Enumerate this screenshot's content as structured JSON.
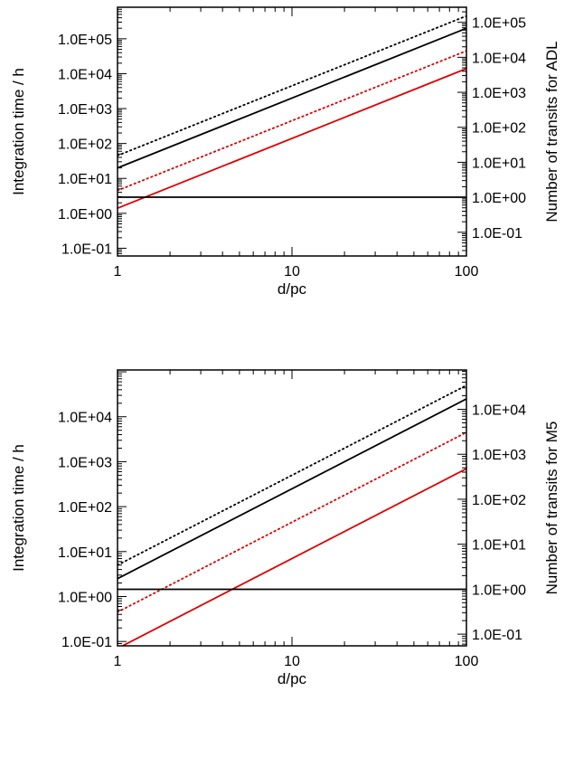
{
  "chart_data": [
    {
      "type": "line",
      "xscale": "log",
      "yscale": "log",
      "xlabel": "d/pc",
      "ylabel": "Integration time / h",
      "ylabel_right": "Number of transits for ADL",
      "xlim": [
        1,
        100
      ],
      "ylim": [
        0.06,
        800000
      ],
      "ylim_right": [
        0.021,
        270000
      ],
      "x_ticks": [
        {
          "value": 1,
          "label": "1"
        },
        {
          "value": 10,
          "label": "10"
        },
        {
          "value": 100,
          "label": "100"
        }
      ],
      "y_ticks": [
        {
          "value": 0.1,
          "label": "1.0E-01"
        },
        {
          "value": 1,
          "label": "1.0E+00"
        },
        {
          "value": 10,
          "label": "1.0E+01"
        },
        {
          "value": 100,
          "label": "1.0E+02"
        },
        {
          "value": 1000,
          "label": "1.0E+03"
        },
        {
          "value": 10000,
          "label": "1.0E+04"
        },
        {
          "value": 100000,
          "label": "1.0E+05"
        }
      ],
      "y_ticks_right": [
        {
          "value": 0.1,
          "label": "1.0E-01"
        },
        {
          "value": 1,
          "label": "1.0E+00"
        },
        {
          "value": 10,
          "label": "1.0E+01"
        },
        {
          "value": 100,
          "label": "1.0E+02"
        },
        {
          "value": 1000,
          "label": "1.0E+03"
        },
        {
          "value": 10000,
          "label": "1.0E+04"
        },
        {
          "value": 100000,
          "label": "1.0E+05"
        }
      ],
      "series": [
        {
          "color": "#000000",
          "dash": "dotted",
          "x": [
            1,
            100
          ],
          "y": [
            45,
            450000
          ]
        },
        {
          "color": "#000000",
          "dash": "solid",
          "x": [
            1,
            100
          ],
          "y": [
            20,
            200000
          ]
        },
        {
          "color": "#dd0000",
          "dash": "dotted",
          "x": [
            1,
            100
          ],
          "y": [
            4.5,
            45000
          ]
        },
        {
          "color": "#dd0000",
          "dash": "solid",
          "x": [
            1,
            100
          ],
          "y": [
            1.4,
            14000
          ]
        },
        {
          "color": "#000000",
          "dash": "solid",
          "x": [
            1,
            100
          ],
          "y": [
            2.9,
            2.9
          ]
        }
      ]
    },
    {
      "type": "line",
      "xscale": "log",
      "yscale": "log",
      "xlabel": "d/pc",
      "ylabel": "Integration time / h",
      "ylabel_right": "Number of transits for M5",
      "xlim": [
        1,
        100
      ],
      "ylim": [
        0.08,
        110000
      ],
      "ylim_right": [
        0.055,
        75000
      ],
      "x_ticks": [
        {
          "value": 1,
          "label": "1"
        },
        {
          "value": 10,
          "label": "10"
        },
        {
          "value": 100,
          "label": "100"
        }
      ],
      "y_ticks": [
        {
          "value": 0.1,
          "label": "1.0E-01"
        },
        {
          "value": 1,
          "label": "1.0E+00"
        },
        {
          "value": 10,
          "label": "1.0E+01"
        },
        {
          "value": 100,
          "label": "1.0E+02"
        },
        {
          "value": 1000,
          "label": "1.0E+03"
        },
        {
          "value": 10000,
          "label": "1.0E+04"
        }
      ],
      "y_ticks_right": [
        {
          "value": 0.1,
          "label": "1.0E-01"
        },
        {
          "value": 1,
          "label": "1.0E+00"
        },
        {
          "value": 10,
          "label": "1.0E+01"
        },
        {
          "value": 100,
          "label": "1.0E+02"
        },
        {
          "value": 1000,
          "label": "1.0E+03"
        },
        {
          "value": 10000,
          "label": "1.0E+04"
        }
      ],
      "series": [
        {
          "color": "#000000",
          "dash": "dotted",
          "x": [
            1,
            100
          ],
          "y": [
            5,
            50000
          ]
        },
        {
          "color": "#000000",
          "dash": "solid",
          "x": [
            1,
            100
          ],
          "y": [
            2.5,
            25000
          ]
        },
        {
          "color": "#dd0000",
          "dash": "dotted",
          "x": [
            1,
            100
          ],
          "y": [
            0.45,
            4500
          ]
        },
        {
          "color": "#dd0000",
          "dash": "solid",
          "x": [
            1,
            100
          ],
          "y": [
            0.07,
            700
          ]
        },
        {
          "color": "#000000",
          "dash": "solid",
          "x": [
            1,
            100
          ],
          "y": [
            1.45,
            1.45
          ]
        }
      ]
    }
  ]
}
